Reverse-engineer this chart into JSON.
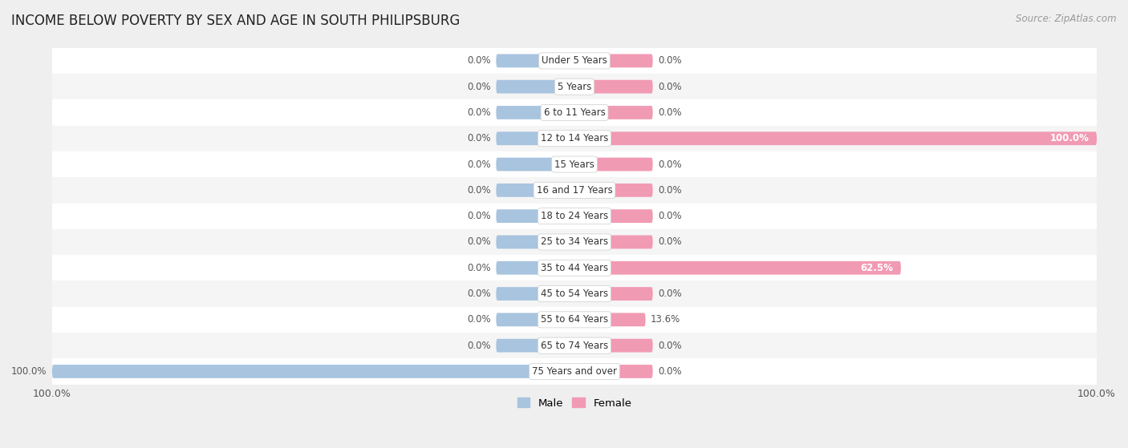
{
  "title": "INCOME BELOW POVERTY BY SEX AND AGE IN SOUTH PHILIPSBURG",
  "source": "Source: ZipAtlas.com",
  "categories": [
    "Under 5 Years",
    "5 Years",
    "6 to 11 Years",
    "12 to 14 Years",
    "15 Years",
    "16 and 17 Years",
    "18 to 24 Years",
    "25 to 34 Years",
    "35 to 44 Years",
    "45 to 54 Years",
    "55 to 64 Years",
    "65 to 74 Years",
    "75 Years and over"
  ],
  "male_values": [
    0.0,
    0.0,
    0.0,
    0.0,
    0.0,
    0.0,
    0.0,
    0.0,
    0.0,
    0.0,
    0.0,
    0.0,
    100.0
  ],
  "female_values": [
    0.0,
    0.0,
    0.0,
    100.0,
    0.0,
    0.0,
    0.0,
    0.0,
    62.5,
    0.0,
    13.6,
    0.0,
    0.0
  ],
  "male_color": "#a8c4df",
  "female_color": "#f19ab4",
  "male_label": "Male",
  "female_label": "Female",
  "bar_height": 0.52,
  "background_color": "#efefef",
  "row_bg_even": "#ffffff",
  "row_bg_odd": "#f5f5f5",
  "xlim": 100,
  "min_bar_width": 15,
  "title_fontsize": 12,
  "source_fontsize": 8.5,
  "label_fontsize": 8.5,
  "cat_fontsize": 8.5,
  "tick_fontsize": 9,
  "cat_pill_color": "#ffffff",
  "cat_text_color": "#333333",
  "value_color_dark": "#555555",
  "value_color_light": "#ffffff"
}
